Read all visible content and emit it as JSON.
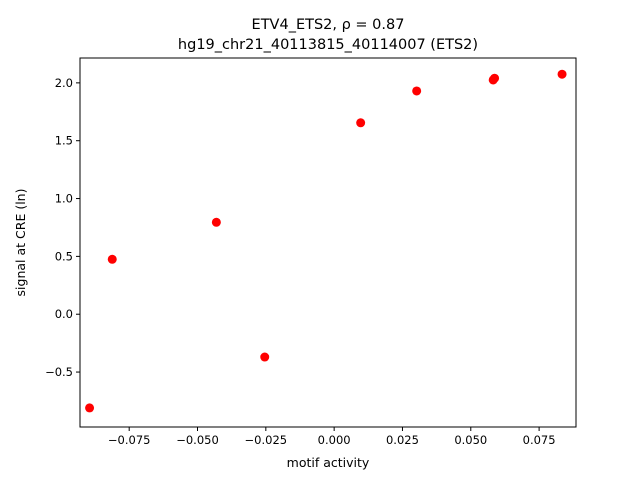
{
  "chart_data": {
    "type": "scatter",
    "title": "ETV4_ETS2, ρ = 0.87",
    "subtitle": "hg19_chr21_40113815_40114007 (ETS2)",
    "xlabel": "motif activity",
    "ylabel": "signal at CRE (ln)",
    "xlim": [
      -0.093,
      0.0885
    ],
    "ylim": [
      -0.975,
      2.215
    ],
    "xticks": [
      -0.075,
      -0.05,
      -0.025,
      0.0,
      0.025,
      0.05,
      0.075
    ],
    "xtick_labels": [
      "−0.075",
      "−0.050",
      "−0.025",
      "0.000",
      "0.025",
      "0.050",
      "0.075"
    ],
    "yticks": [
      -0.5,
      0.0,
      0.5,
      1.0,
      1.5,
      2.0
    ],
    "ytick_labels": [
      "−0.5",
      "0.0",
      "0.5",
      "1.0",
      "1.5",
      "2.0"
    ],
    "grid": false,
    "marker_color": "#ff0000",
    "points": [
      {
        "x": -0.0895,
        "y": -0.81
      },
      {
        "x": -0.0812,
        "y": 0.475
      },
      {
        "x": -0.0431,
        "y": 0.795
      },
      {
        "x": -0.0254,
        "y": -0.37
      },
      {
        "x": 0.0097,
        "y": 1.655
      },
      {
        "x": 0.0302,
        "y": 1.93
      },
      {
        "x": 0.0582,
        "y": 2.025
      },
      {
        "x": 0.0587,
        "y": 2.04
      },
      {
        "x": 0.0834,
        "y": 2.075
      }
    ]
  }
}
